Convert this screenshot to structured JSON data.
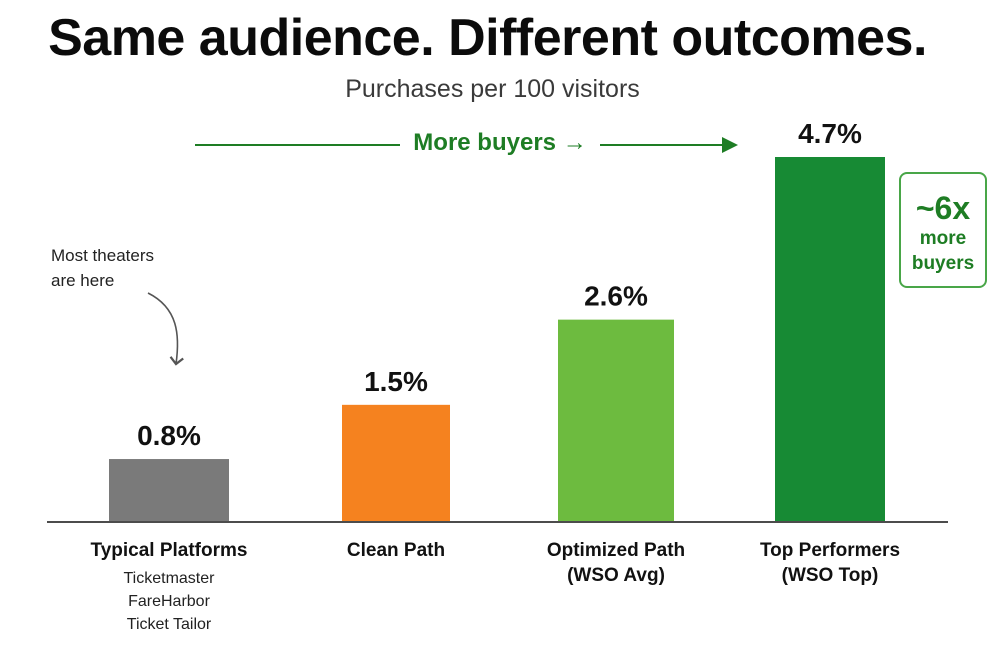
{
  "title": "Same audience. Different outcomes.",
  "subtitle": "Purchases per 100 visitors",
  "more_buyers": {
    "label": "More buyers",
    "arrow_glyph": "→"
  },
  "annotation": {
    "line1": "Most theaters",
    "line2": "are here"
  },
  "callout": {
    "big": "~6x",
    "line1": "more",
    "line2": "buyers"
  },
  "chart_data": {
    "type": "bar",
    "title": "Same audience. Different outcomes.",
    "subtitle": "Purchases per 100 visitors",
    "xlabel": "",
    "ylabel": "",
    "ylim": [
      0,
      4.7
    ],
    "grid": false,
    "legend": "none",
    "unit": "%",
    "categories": [
      "Typical Platforms",
      "Clean Path",
      "Optimized Path",
      "Top Performers"
    ],
    "category_sublabels": [
      [
        "Ticketmaster",
        "FareHarbor",
        "Ticket Tailor"
      ],
      [],
      [
        "(WSO Avg)"
      ],
      [
        "(WSO Top)"
      ]
    ],
    "values": [
      0.8,
      1.5,
      2.6,
      4.7
    ],
    "value_labels": [
      "0.8%",
      "1.5%",
      "2.6%",
      "4.7%"
    ],
    "colors": [
      "#7a7a7a",
      "#f5821f",
      "#6dbb3f",
      "#178a34"
    ]
  }
}
